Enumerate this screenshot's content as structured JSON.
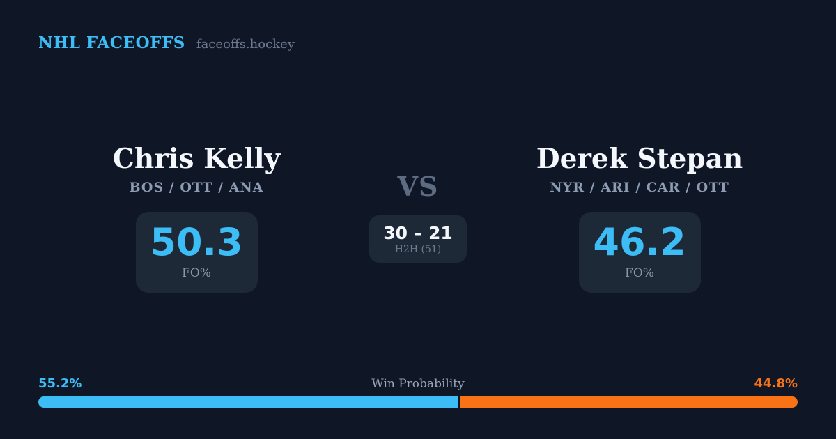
{
  "header": {
    "brand": "NHL FACEOFFS",
    "site": "faceoffs.hockey"
  },
  "matchup": {
    "vs_label": "VS",
    "h2h": {
      "score": "30 – 21",
      "label": "H2H (51)"
    },
    "players": [
      {
        "name": "Chris Kelly",
        "teams": "BOS / OTT / ANA",
        "fo_pct": "50.3",
        "stat_label": "FO%"
      },
      {
        "name": "Derek Stepan",
        "teams": "NYR / ARI / CAR / OTT",
        "fo_pct": "46.2",
        "stat_label": "FO%"
      }
    ]
  },
  "win_probability": {
    "label": "Win Probability",
    "left_pct_label": "55.2%",
    "right_pct_label": "44.8%",
    "left_value": 55.2,
    "right_value": 44.8
  },
  "colors": {
    "background": "#0f1726",
    "card": "#1e2938",
    "accent_blue": "#3dbdf5",
    "accent_orange": "#f97316"
  }
}
